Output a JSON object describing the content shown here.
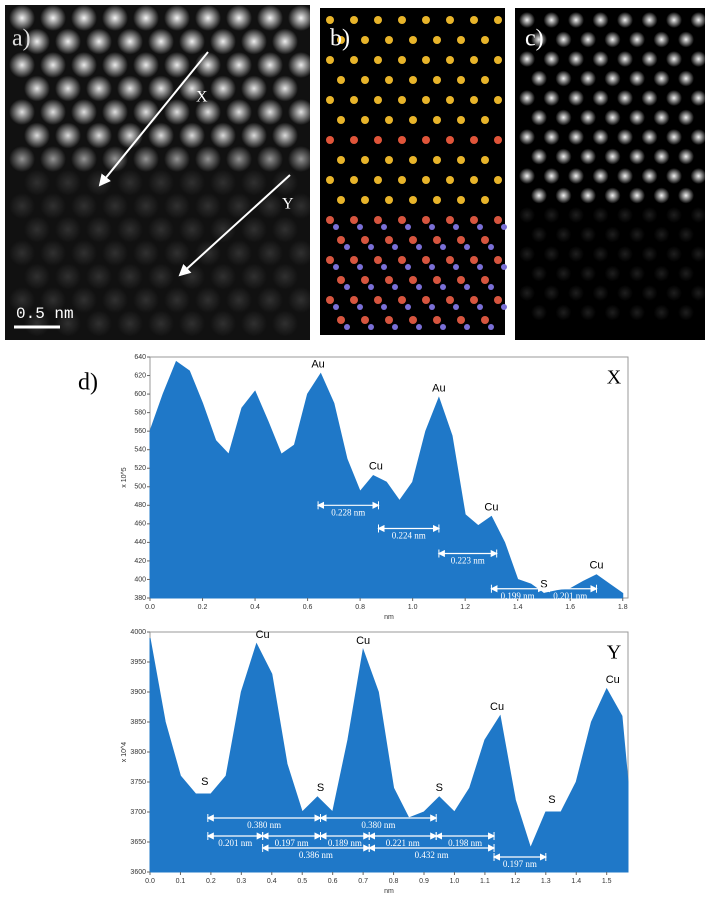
{
  "panels": {
    "a": {
      "label": "a)",
      "arrows": [
        "X",
        "Y"
      ],
      "scale_bar": "0.5 nm"
    },
    "b": {
      "label": "b)"
    },
    "c": {
      "label": "c)"
    },
    "d": {
      "label": "d)"
    }
  },
  "chart_data": [
    {
      "type": "area",
      "title": "X",
      "xlabel": "nm",
      "ylabel": "x 10^5",
      "color": "#1f78c8",
      "x": [
        0.0,
        0.05,
        0.1,
        0.15,
        0.2,
        0.25,
        0.3,
        0.35,
        0.4,
        0.45,
        0.5,
        0.55,
        0.6,
        0.65,
        0.7,
        0.75,
        0.8,
        0.85,
        0.9,
        0.95,
        1.0,
        1.05,
        1.1,
        1.15,
        1.2,
        1.25,
        1.3,
        1.35,
        1.4,
        1.45,
        1.5,
        1.55,
        1.6,
        1.65,
        1.7,
        1.75,
        1.8
      ],
      "values": [
        560,
        600,
        635,
        625,
        590,
        550,
        535,
        585,
        603,
        570,
        535,
        545,
        600,
        622,
        590,
        530,
        495,
        512,
        505,
        485,
        505,
        560,
        596,
        555,
        470,
        458,
        468,
        440,
        400,
        395,
        385,
        388,
        390,
        398,
        405,
        395,
        385
      ],
      "xlim": [
        0,
        1.82
      ],
      "ylim": [
        380,
        640
      ],
      "xticks": [
        {
          "value": 0,
          "label": "0.0"
        },
        0.2,
        0.4,
        0.6,
        0.8,
        {
          "value": 1,
          "label": "1.0"
        },
        1.2,
        1.4,
        1.6,
        1.8
      ],
      "yticks": [
        380,
        400,
        420,
        440,
        460,
        480,
        500,
        520,
        540,
        560,
        580,
        600,
        620,
        640
      ],
      "annotations": [
        {
          "text": "Au",
          "x": 0.64,
          "y": 622
        },
        {
          "text": "Cu",
          "x": 0.86,
          "y": 512
        },
        {
          "text": "Au",
          "x": 1.1,
          "y": 596
        },
        {
          "text": "Cu",
          "x": 1.3,
          "y": 468
        },
        {
          "text": "S",
          "x": 1.5,
          "y": 385
        },
        {
          "text": "Cu",
          "x": 1.7,
          "y": 405
        }
      ],
      "distances": [
        {
          "label": "0.228 nm",
          "x": [
            0.64,
            0.87
          ],
          "y": 480
        },
        {
          "label": "0.224 nm",
          "x": [
            0.87,
            1.1
          ],
          "y": 455
        },
        {
          "label": "0.223 nm",
          "x": [
            1.1,
            1.32
          ],
          "y": 428
        },
        {
          "label": "0.199 nm",
          "x": [
            1.3,
            1.5
          ],
          "y": 390
        },
        {
          "label": "0.201 nm",
          "x": [
            1.5,
            1.7
          ],
          "y": 390
        }
      ]
    },
    {
      "type": "area",
      "title": "Y",
      "xlabel": "nm",
      "ylabel": "x 10^4",
      "color": "#1f78c8",
      "x": [
        0.0,
        0.05,
        0.1,
        0.15,
        0.2,
        0.25,
        0.3,
        0.35,
        0.4,
        0.45,
        0.5,
        0.55,
        0.6,
        0.65,
        0.7,
        0.75,
        0.8,
        0.85,
        0.9,
        0.95,
        1.0,
        1.05,
        1.1,
        1.15,
        1.2,
        1.25,
        1.3,
        1.35,
        1.4,
        1.45,
        1.5,
        1.55,
        1.57
      ],
      "values": [
        3990,
        3850,
        3760,
        3730,
        3730,
        3760,
        3900,
        3980,
        3930,
        3780,
        3700,
        3725,
        3700,
        3820,
        3970,
        3900,
        3740,
        3690,
        3700,
        3725,
        3700,
        3740,
        3820,
        3860,
        3720,
        3640,
        3700,
        3700,
        3750,
        3850,
        3905,
        3860,
        3750
      ],
      "xlim": [
        0,
        1.57
      ],
      "ylim": [
        3600,
        4000
      ],
      "xticks": [
        {
          "value": 0,
          "label": "0.0"
        },
        0.1,
        0.2,
        0.3,
        0.4,
        0.5,
        0.6,
        0.7,
        0.8,
        0.9,
        {
          "value": 1,
          "label": "1.0"
        },
        1.1,
        1.2,
        1.3,
        1.4,
        1.5
      ],
      "yticks": [
        3600,
        3650,
        3700,
        3750,
        3800,
        3850,
        3900,
        3950,
        4000
      ],
      "annotations": [
        {
          "text": "S",
          "x": 0.18,
          "y": 3735
        },
        {
          "text": "Cu",
          "x": 0.37,
          "y": 3980
        },
        {
          "text": "S",
          "x": 0.56,
          "y": 3725
        },
        {
          "text": "Cu",
          "x": 0.7,
          "y": 3970
        },
        {
          "text": "S",
          "x": 0.95,
          "y": 3725
        },
        {
          "text": "Cu",
          "x": 1.14,
          "y": 3860
        },
        {
          "text": "S",
          "x": 1.32,
          "y": 3705
        },
        {
          "text": "Cu",
          "x": 1.52,
          "y": 3905
        }
      ],
      "distances": [
        {
          "label": "0.380 nm",
          "x": [
            0.19,
            0.56
          ],
          "y": 3690
        },
        {
          "label": "0.380 nm",
          "x": [
            0.56,
            0.94
          ],
          "y": 3690
        },
        {
          "label": "0.201 nm",
          "x": [
            0.19,
            0.37
          ],
          "y": 3660
        },
        {
          "label": "0.197 nm",
          "x": [
            0.37,
            0.56
          ],
          "y": 3660
        },
        {
          "label": "0.189 nm",
          "x": [
            0.56,
            0.72
          ],
          "y": 3660
        },
        {
          "label": "0.221 nm",
          "x": [
            0.72,
            0.94
          ],
          "y": 3660
        },
        {
          "label": "0.198 nm",
          "x": [
            0.94,
            1.13
          ],
          "y": 3660
        },
        {
          "label": "0.386 nm",
          "x": [
            0.37,
            0.72
          ],
          "y": 3640
        },
        {
          "label": "0.432 nm",
          "x": [
            0.72,
            1.13
          ],
          "y": 3640
        },
        {
          "label": "0.197 nm",
          "x": [
            1.13,
            1.3
          ],
          "y": 3625
        }
      ]
    }
  ]
}
